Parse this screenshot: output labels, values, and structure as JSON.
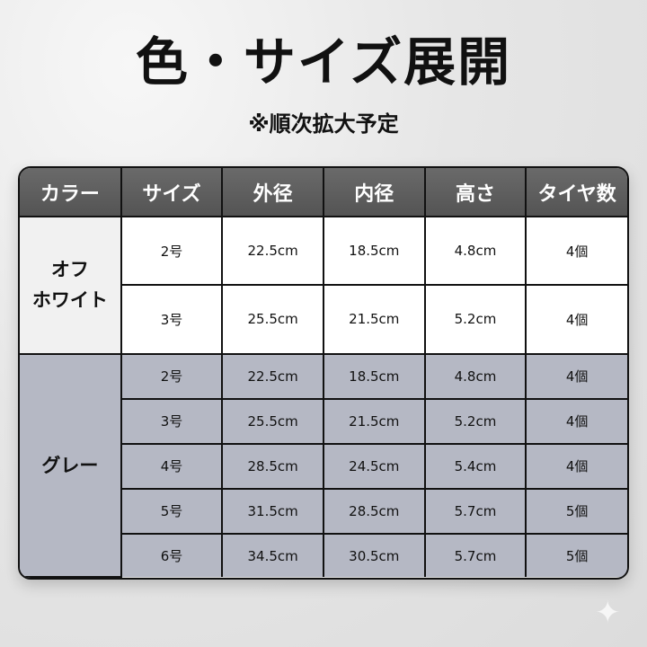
{
  "title": "色・サイズ展開",
  "subtitle": "※順次拡大予定",
  "table": {
    "headers": [
      "カラー",
      "サイズ",
      "外径",
      "内径",
      "高さ",
      "タイヤ数"
    ],
    "groups": [
      {
        "color": "オフ\nホワイト",
        "rows": [
          [
            "2号",
            "22.5cm",
            "18.5cm",
            "4.8cm",
            "4個"
          ],
          [
            "3号",
            "25.5cm",
            "21.5cm",
            "5.2cm",
            "4個"
          ]
        ]
      },
      {
        "color": "グレー",
        "rows": [
          [
            "2号",
            "22.5cm",
            "18.5cm",
            "4.8cm",
            "4個"
          ],
          [
            "3号",
            "25.5cm",
            "21.5cm",
            "5.2cm",
            "4個"
          ],
          [
            "4号",
            "28.5cm",
            "24.5cm",
            "5.4cm",
            "4個"
          ],
          [
            "5号",
            "31.5cm",
            "28.5cm",
            "5.7cm",
            "5個"
          ],
          [
            "6号",
            "34.5cm",
            "30.5cm",
            "5.7cm",
            "5個"
          ]
        ]
      }
    ]
  },
  "colors": {
    "header": "#5e5e5e",
    "offwhite": "#ffffff",
    "gray": "#b5b8c4"
  },
  "decor": {
    "icon": "sparkle-icon"
  }
}
